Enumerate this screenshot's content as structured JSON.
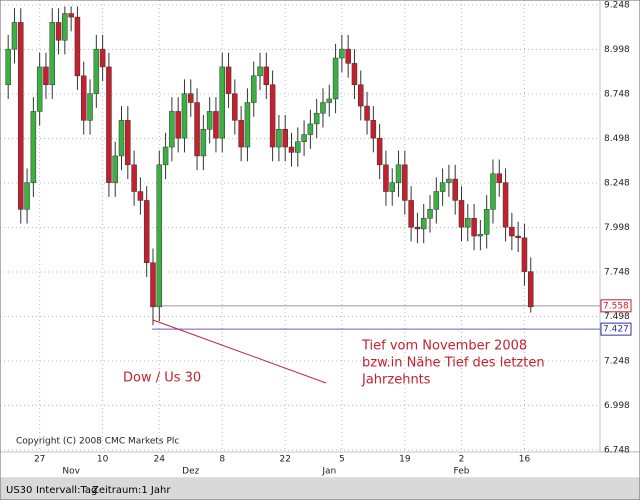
{
  "chart_data": {
    "type": "candlestick",
    "symbol": "US30",
    "interval": "Intervall:Tag",
    "period": "Zeitraum:1 Jahr",
    "copyright": "Copyright (C) 2008 CMC Markets Plc",
    "annotations": [
      "Dow / Us 30",
      "Tief vom November 2008",
      "bzw.in Nähe Tief des letzten",
      "Jahrzehnts"
    ],
    "up_color": "#3cb043",
    "down_color": "#c4202e",
    "xlim": [
      -1.3,
      94
    ],
    "ylim": [
      6748,
      9276
    ],
    "grid": true,
    "yticks": [
      {
        "value": 6748,
        "label": "6.748"
      },
      {
        "value": 6998,
        "label": "6.998"
      },
      {
        "value": 7248,
        "label": "7.248"
      },
      {
        "value": 7498,
        "label": "7.498"
      },
      {
        "value": 7748,
        "label": "7.748"
      },
      {
        "value": 7998,
        "label": "7.998"
      },
      {
        "value": 8248,
        "label": "8.248"
      },
      {
        "value": 8498,
        "label": "8.498"
      },
      {
        "value": 8748,
        "label": "8.748"
      },
      {
        "value": 8998,
        "label": "8.998"
      },
      {
        "value": 9248,
        "label": "9.248"
      }
    ],
    "xticks": [
      {
        "value": 5,
        "label": "27"
      },
      {
        "value": 15,
        "label": "10"
      },
      {
        "value": 24,
        "label": "24"
      },
      {
        "value": 34,
        "label": "8"
      },
      {
        "value": 44,
        "label": "22"
      },
      {
        "value": 53,
        "label": "5"
      },
      {
        "value": 63,
        "label": "19"
      },
      {
        "value": 72,
        "label": "2"
      },
      {
        "value": 82,
        "label": "16"
      }
    ],
    "month_ticks": [
      {
        "value": 10,
        "label": "Nov"
      },
      {
        "value": 29,
        "label": "Dez"
      },
      {
        "value": 51,
        "label": "Jan"
      },
      {
        "value": 72,
        "label": "Feb"
      }
    ],
    "levels": [
      {
        "value": 7558,
        "label": "7.558",
        "color": "#999999",
        "label_color": "#c4202e"
      },
      {
        "value": 7427,
        "label": "7.427",
        "color": "#6a5acd",
        "label_color": "#3030a0"
      }
    ],
    "open": [
      8800,
      9000,
      9150,
      8100,
      8250,
      8650,
      8900,
      8800,
      9150,
      9050,
      9200,
      9180,
      8850,
      8600,
      8750,
      9000,
      8900,
      8250,
      8400,
      8600,
      8350,
      8200,
      8150,
      7800,
      7552,
      8350,
      8450,
      8650,
      8500,
      8750,
      8700,
      8400,
      8550,
      8650,
      8500,
      8900,
      8750,
      8600,
      8450,
      8700,
      8850,
      8900,
      8800,
      8450,
      8550,
      8450,
      8420,
      8480,
      8520,
      8580,
      8640,
      8700,
      8720,
      8950,
      9000,
      8920,
      8800,
      8680,
      8600,
      8500,
      8350,
      8200,
      8250,
      8350,
      8150,
      8000,
      7990,
      8050,
      8100,
      8200,
      8250,
      8270,
      8150,
      8000,
      8050,
      7950,
      7960,
      8100,
      8300,
      8250,
      8000,
      7950,
      7940,
      7750
    ],
    "high": [
      9080,
      9230,
      9230,
      8330,
      8730,
      8980,
      8980,
      9230,
      9230,
      9240,
      9240,
      9240,
      8930,
      8830,
      9080,
      9080,
      8980,
      8480,
      8680,
      8680,
      8430,
      8280,
      8230,
      7880,
      8430,
      8530,
      8730,
      8730,
      8830,
      8830,
      8780,
      8630,
      8730,
      8730,
      8980,
      8980,
      8830,
      8680,
      8780,
      8930,
      8980,
      8980,
      8880,
      8630,
      8630,
      8530,
      8560,
      8600,
      8660,
      8720,
      8780,
      8800,
      9030,
      9080,
      9080,
      9000,
      8880,
      8760,
      8680,
      8580,
      8430,
      8330,
      8430,
      8430,
      8230,
      8080,
      8130,
      8180,
      8280,
      8330,
      8350,
      8350,
      8230,
      8130,
      8130,
      8040,
      8180,
      8380,
      8380,
      8330,
      8080,
      8030,
      8020,
      7830
    ],
    "low": [
      8720,
      8920,
      8020,
      8020,
      8170,
      8570,
      8720,
      8720,
      8970,
      8970,
      9100,
      8770,
      8520,
      8520,
      8670,
      8820,
      8170,
      8170,
      8320,
      8270,
      8120,
      8070,
      7720,
      7449,
      7472,
      8270,
      8370,
      8420,
      8420,
      8620,
      8320,
      8320,
      8470,
      8420,
      8420,
      8670,
      8520,
      8370,
      8370,
      8620,
      8770,
      8720,
      8370,
      8370,
      8370,
      8340,
      8340,
      8400,
      8440,
      8500,
      8560,
      8620,
      8640,
      8870,
      8840,
      8720,
      8600,
      8520,
      8420,
      8270,
      8120,
      8120,
      8170,
      8070,
      7920,
      7910,
      7910,
      7970,
      8020,
      8120,
      8170,
      8070,
      7920,
      7920,
      7870,
      7870,
      7880,
      8020,
      8170,
      7920,
      7870,
      7860,
      7670,
      7520
    ],
    "close": [
      9000,
      9150,
      8100,
      8250,
      8650,
      8900,
      8800,
      9150,
      9050,
      9200,
      9180,
      8850,
      8600,
      8750,
      9000,
      8900,
      8250,
      8400,
      8600,
      8350,
      8200,
      8150,
      7800,
      7552,
      8350,
      8450,
      8650,
      8500,
      8750,
      8700,
      8400,
      8550,
      8650,
      8500,
      8900,
      8750,
      8600,
      8450,
      8700,
      8850,
      8900,
      8800,
      8450,
      8550,
      8450,
      8420,
      8480,
      8520,
      8580,
      8640,
      8700,
      8720,
      8950,
      9000,
      8920,
      8800,
      8680,
      8600,
      8500,
      8350,
      8200,
      8250,
      8350,
      8150,
      8000,
      7990,
      8050,
      8100,
      8200,
      8250,
      8270,
      8150,
      8000,
      8050,
      7950,
      7960,
      8100,
      8300,
      8250,
      8000,
      7950,
      7940,
      7750,
      7552
    ]
  }
}
